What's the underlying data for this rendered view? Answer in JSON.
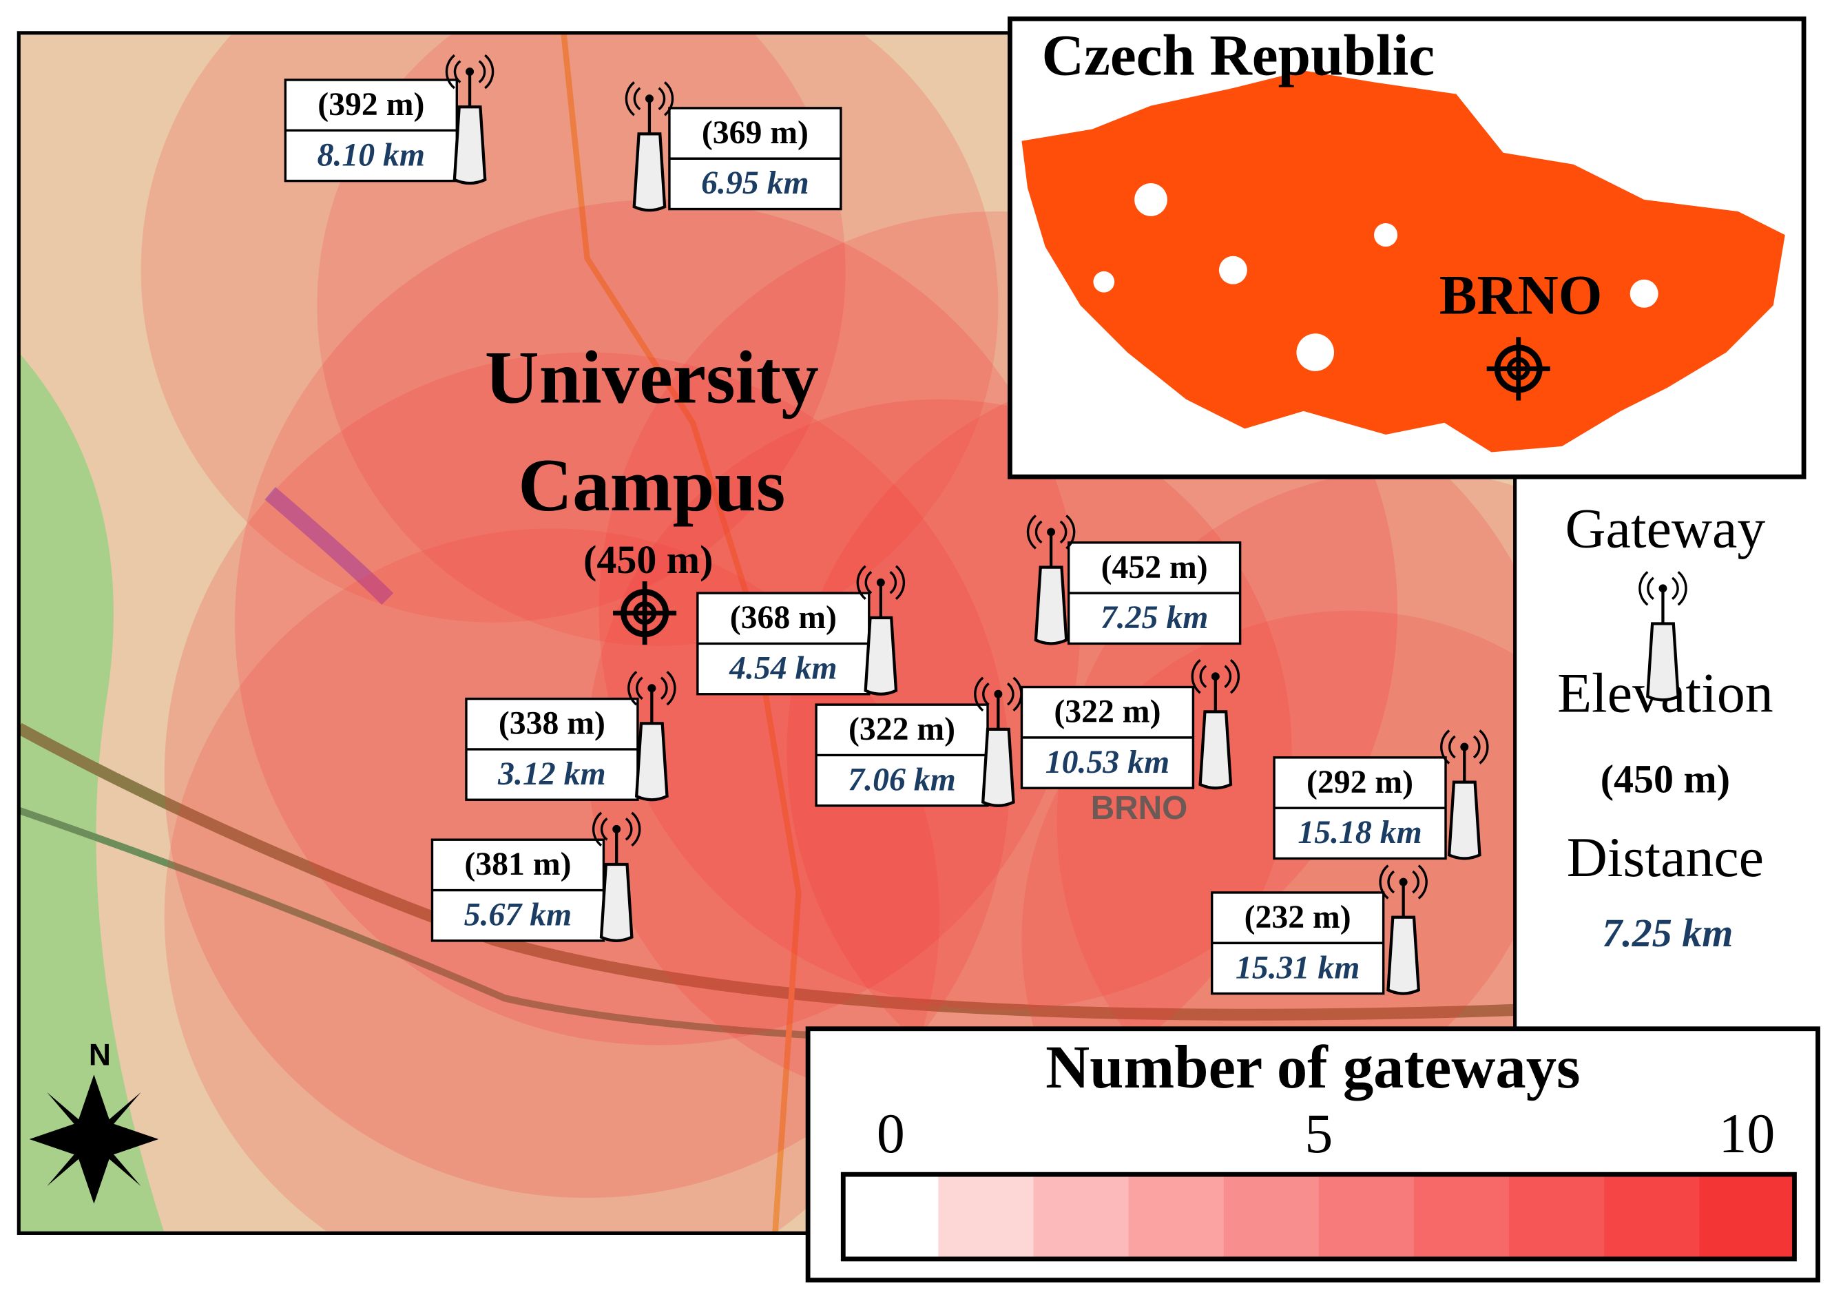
{
  "map": {
    "city_label": "BRNO",
    "north": "N"
  },
  "campus": {
    "name_lines": [
      "University",
      "Campus"
    ],
    "elevation": "(450 m)"
  },
  "gateways": [
    {
      "elevation": "(392 m)",
      "distance": "8.10 km"
    },
    {
      "elevation": "(369 m)",
      "distance": "6.95 km"
    },
    {
      "elevation": "(368 m)",
      "distance": "4.54 km"
    },
    {
      "elevation": "(452 m)",
      "distance": "7.25 km"
    },
    {
      "elevation": "(338 m)",
      "distance": "3.12 km"
    },
    {
      "elevation": "(322 m)",
      "distance": "7.06 km"
    },
    {
      "elevation": "(322 m)",
      "distance": "10.53 km"
    },
    {
      "elevation": "(292 m)",
      "distance": "15.18 km"
    },
    {
      "elevation": "(381 m)",
      "distance": "5.67 km"
    },
    {
      "elevation": "(232 m)",
      "distance": "15.31 km"
    }
  ],
  "inset": {
    "title": "Czech Republic",
    "city": "BRNO"
  },
  "key": {
    "gateway": "Gateway",
    "elevation_title": "Elevation",
    "elevation": "(450 m)",
    "distance_title": "Distance",
    "distance": "7.25 km"
  },
  "colorbar": {
    "title": "Number of gateways",
    "range": [
      0,
      10
    ],
    "ticks": [
      0,
      5,
      10
    ],
    "colors": [
      "#ffffff",
      "#fdd6d6",
      "#fcbaba",
      "#fba3a3",
      "#f98e8e",
      "#f87b7b",
      "#f76868",
      "#f65656",
      "#f54545",
      "#f43535"
    ]
  }
}
